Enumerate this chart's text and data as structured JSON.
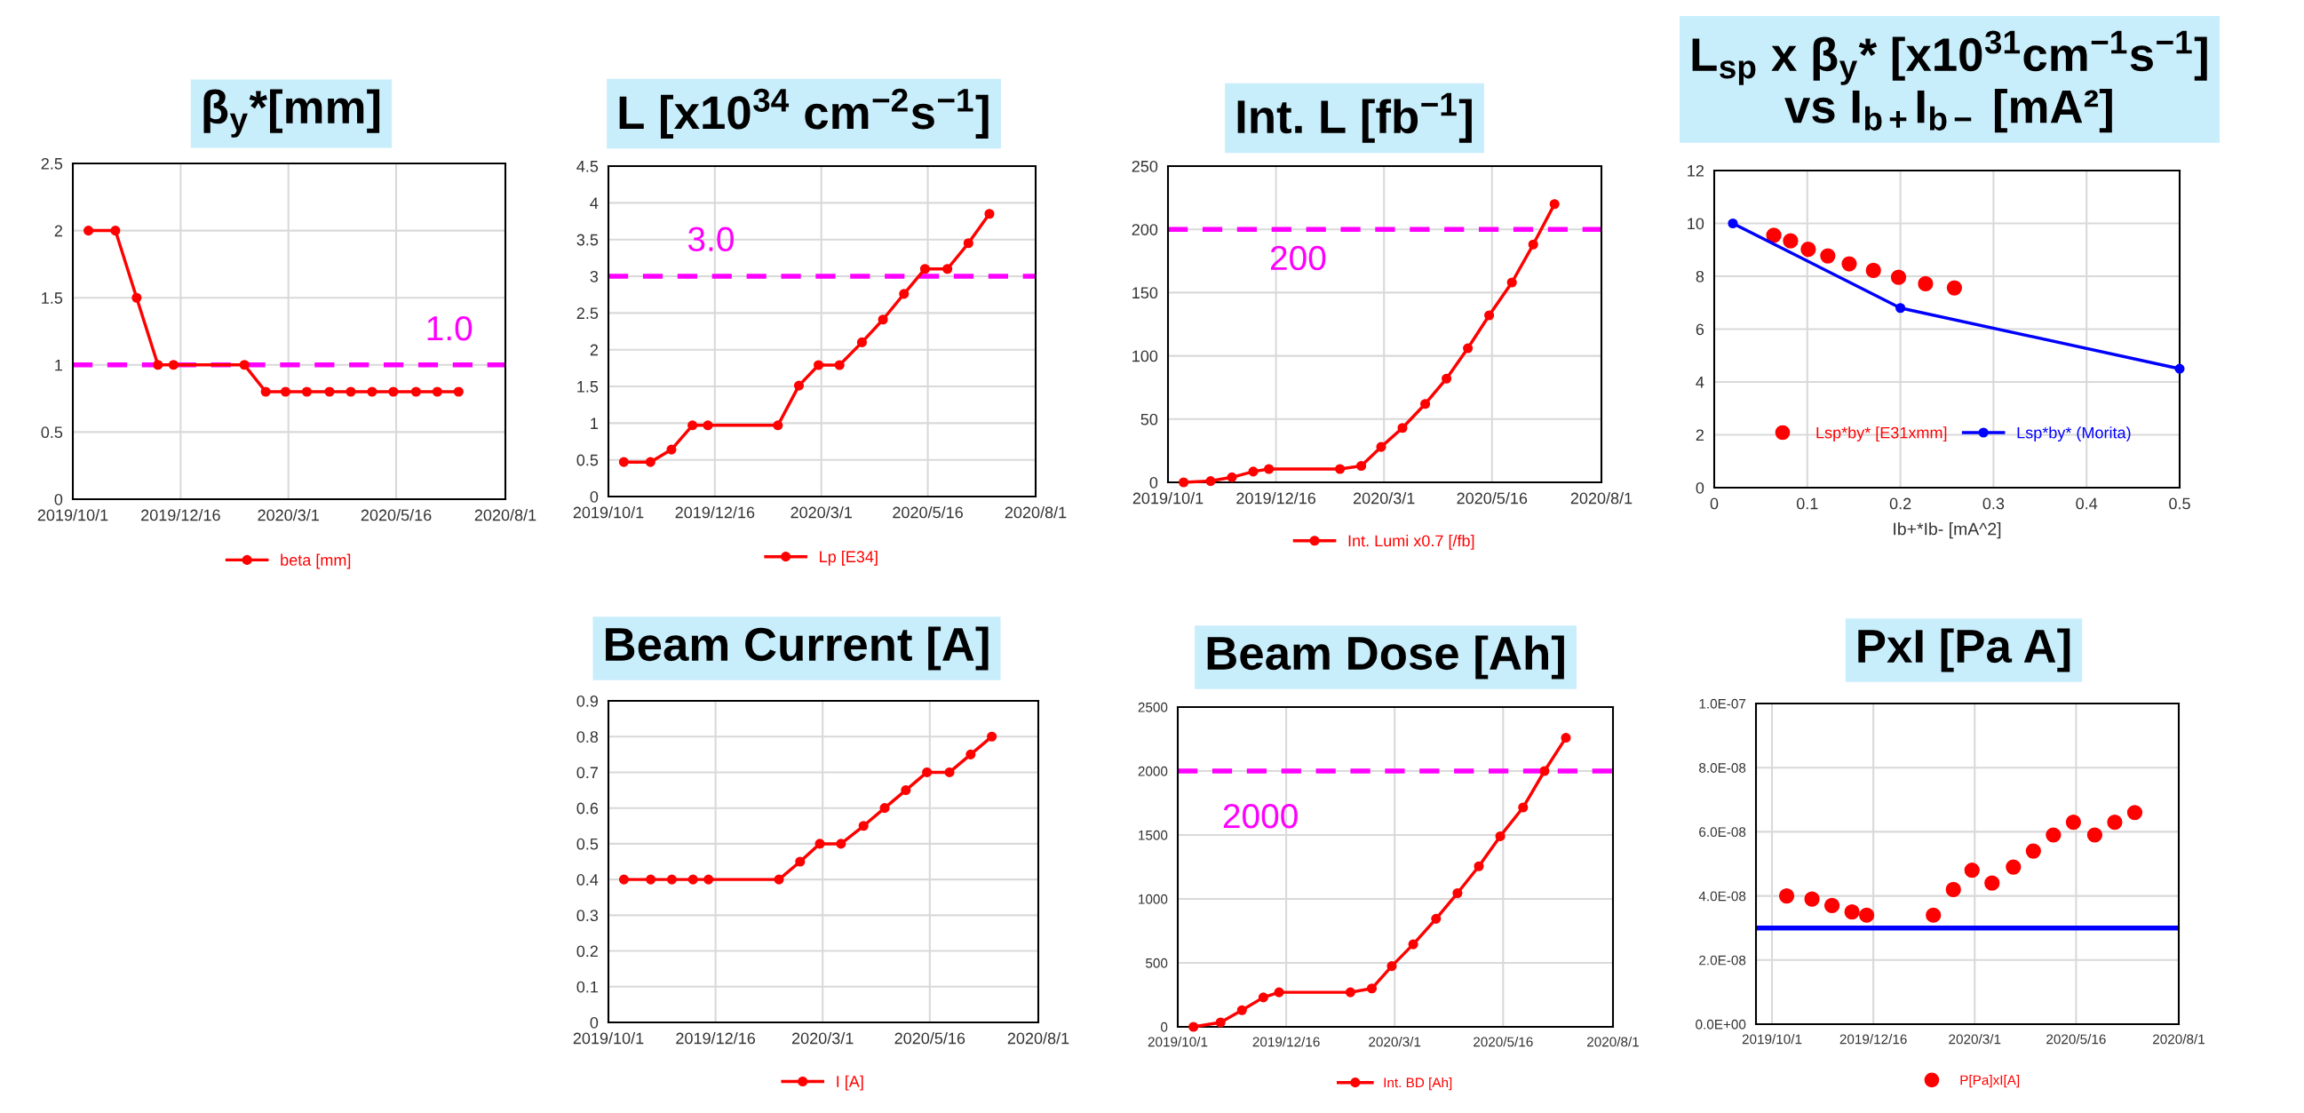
{
  "chart_data": [
    {
      "type": "line",
      "title": "β$_{y}$*[mm]",
      "x": [
        "2019-10-12",
        "2019-10-31",
        "2019-11-15",
        "2019-11-30",
        "2019-12-11",
        "2020-01-30",
        "2020-02-14",
        "2020-02-28",
        "2020-03-14",
        "2020-03-30",
        "2020-04-14",
        "2020-04-29",
        "2020-05-14",
        "2020-05-30",
        "2020-06-14",
        "2020-06-29"
      ],
      "series": [
        {
          "name": "beta [mm]",
          "color": "#ff0000",
          "values": [
            2,
            2,
            1.5,
            1,
            1,
            1,
            0.8,
            0.8,
            0.8,
            0.8,
            0.8,
            0.8,
            0.8,
            0.8,
            0.8,
            0.8
          ]
        }
      ],
      "xlim": [
        "2019-10-01",
        "2020-08-01"
      ],
      "xticks": [
        {
          "value": "2019-10-01",
          "label": "2019/10/1"
        },
        {
          "value": "2019-12-16",
          "label": "2019/12/16"
        },
        {
          "value": "2020-03-01",
          "label": "2020/3/1"
        },
        {
          "value": "2020-05-16",
          "label": "2020/5/16"
        },
        {
          "value": "2020-08-01",
          "label": "2020/8/1"
        }
      ],
      "ylim": [
        0,
        2.5
      ],
      "yticks": [
        0,
        0.5,
        1,
        1.5,
        2,
        2.5
      ],
      "ref_lines": [
        {
          "axis": "y",
          "value": 1,
          "label": "1.0",
          "color": "#ff00ff",
          "line_style": "dashed"
        }
      ],
      "marker": "circle",
      "line_style": "solid",
      "grid": true,
      "legend": "bottom"
    },
    {
      "type": "line",
      "title": "L [x10$^{34}$ cm$^{−2}$s$^{−1}$]",
      "x": [
        "2019-10-12",
        "2019-10-31",
        "2019-11-15",
        "2019-11-30",
        "2019-12-11",
        "2020-01-30",
        "2020-02-14",
        "2020-02-28",
        "2020-03-14",
        "2020-03-30",
        "2020-04-14",
        "2020-04-29",
        "2020-05-14",
        "2020-05-30",
        "2020-06-14",
        "2020-06-29"
      ],
      "series": [
        {
          "name": "Lp [E34]",
          "color": "#ff0000",
          "values": [
            0.47,
            0.47,
            0.64,
            0.97,
            0.97,
            0.97,
            1.51,
            1.79,
            1.79,
            2.1,
            2.41,
            2.76,
            3.1,
            3.1,
            3.45,
            3.85
          ]
        }
      ],
      "xlim": [
        "2019-10-01",
        "2020-08-01"
      ],
      "xticks": [
        {
          "value": "2019-10-01",
          "label": "2019/10/1"
        },
        {
          "value": "2019-12-16",
          "label": "2019/12/16"
        },
        {
          "value": "2020-03-01",
          "label": "2020/3/1"
        },
        {
          "value": "2020-05-16",
          "label": "2020/5/16"
        },
        {
          "value": "2020-08-01",
          "label": "2020/8/1"
        }
      ],
      "ylim": [
        0,
        4.5
      ],
      "yticks": [
        0,
        0.5,
        1,
        1.5,
        2,
        2.5,
        3,
        3.5,
        4,
        4.5
      ],
      "ref_lines": [
        {
          "axis": "y",
          "value": 3,
          "label": "3.0",
          "color": "#ff00ff",
          "line_style": "dashed"
        }
      ],
      "marker": "circle",
      "line_style": "solid",
      "grid": true,
      "legend": "bottom"
    },
    {
      "type": "line",
      "title": "Int. L [fb$^{−1}$]",
      "x": [
        "2019-10-12",
        "2019-10-31",
        "2019-11-15",
        "2019-11-30",
        "2019-12-11",
        "2020-01-30",
        "2020-02-14",
        "2020-02-28",
        "2020-03-14",
        "2020-03-30",
        "2020-04-14",
        "2020-04-29",
        "2020-05-14",
        "2020-05-30",
        "2020-06-14",
        "2020-06-29"
      ],
      "series": [
        {
          "name": "Int. Lumi x0.7 [/fb]",
          "color": "#ff0000",
          "values": [
            0,
            1,
            4,
            8.5,
            10.5,
            10.5,
            13,
            28,
            43,
            62,
            82,
            106,
            132,
            158,
            188,
            220
          ]
        }
      ],
      "xlim": [
        "2019-10-01",
        "2020-08-01"
      ],
      "xticks": [
        {
          "value": "2019-10-01",
          "label": "2019/10/1"
        },
        {
          "value": "2019-12-16",
          "label": "2019/12/16"
        },
        {
          "value": "2020-03-01",
          "label": "2020/3/1"
        },
        {
          "value": "2020-05-16",
          "label": "2020/5/16"
        },
        {
          "value": "2020-08-01",
          "label": "2020/8/1"
        }
      ],
      "ylim": [
        0,
        250
      ],
      "yticks": [
        0,
        50,
        100,
        150,
        200,
        250
      ],
      "ref_lines": [
        {
          "axis": "y",
          "value": 200,
          "label": "200",
          "color": "#ff00ff",
          "line_style": "dashed"
        }
      ],
      "marker": "circle",
      "line_style": "solid",
      "grid": true,
      "legend": "bottom"
    },
    {
      "type": "scatter",
      "title": "L$_{sp}$ x β$_{y}$* [x10$^{31}$cm$^{−1}$s$^{−1}$]\nvs I$_{b+}$I$_{b−}$ [mA²]",
      "xlabel": "Ib+*Ib- [mA^2]",
      "series": [
        {
          "name": "Lsp*by* [E31xmm]",
          "color": "#ff0000",
          "x": [
            0.064,
            0.082,
            0.101,
            0.122,
            0.145,
            0.171,
            0.198,
            0.227,
            0.258
          ],
          "values": [
            9.55,
            9.34,
            9.02,
            8.77,
            8.47,
            8.22,
            7.96,
            7.72,
            7.56
          ]
        },
        {
          "name": "Lsp*by* (Morita)",
          "type": "line",
          "color": "#0000ff",
          "x": [
            0.02,
            0.2,
            0.5
          ],
          "values": [
            10,
            6.8,
            4.5
          ]
        }
      ],
      "xlim": [
        0,
        0.5
      ],
      "xticks": [
        0,
        0.1,
        0.2,
        0.3,
        0.4,
        0.5
      ],
      "ylim": [
        0,
        12
      ],
      "yticks": [
        0,
        2,
        4,
        6,
        8,
        10,
        12
      ],
      "marker": "circle",
      "line_style": "solid",
      "grid": true,
      "legend": "bottom"
    },
    {
      "type": "line",
      "title": "Beam Current [A]",
      "x": [
        "2019-10-12",
        "2019-10-31",
        "2019-11-15",
        "2019-11-30",
        "2019-12-11",
        "2020-01-30",
        "2020-02-14",
        "2020-02-28",
        "2020-03-14",
        "2020-03-30",
        "2020-04-14",
        "2020-04-29",
        "2020-05-14",
        "2020-05-30",
        "2020-06-14",
        "2020-06-29"
      ],
      "series": [
        {
          "name": "I [A]",
          "color": "#ff0000",
          "values": [
            0.4,
            0.4,
            0.4,
            0.4,
            0.4,
            0.4,
            0.45,
            0.5,
            0.5,
            0.55,
            0.6,
            0.65,
            0.7,
            0.7,
            0.75,
            0.8
          ]
        }
      ],
      "xlim": [
        "2019-10-01",
        "2020-08-01"
      ],
      "xticks": [
        {
          "value": "2019-10-01",
          "label": "2019/10/1"
        },
        {
          "value": "2019-12-16",
          "label": "2019/12/16"
        },
        {
          "value": "2020-03-01",
          "label": "2020/3/1"
        },
        {
          "value": "2020-05-16",
          "label": "2020/5/16"
        },
        {
          "value": "2020-08-01",
          "label": "2020/8/1"
        }
      ],
      "ylim": [
        0,
        0.9
      ],
      "yticks": [
        0,
        0.1,
        0.2,
        0.3,
        0.4,
        0.5,
        0.6,
        0.7,
        0.8,
        0.9
      ],
      "marker": "circle",
      "line_style": "solid",
      "grid": true,
      "legend": "bottom"
    },
    {
      "type": "line",
      "title": "Beam Dose [Ah]",
      "x": [
        "2019-10-12",
        "2019-10-31",
        "2019-11-15",
        "2019-11-30",
        "2019-12-11",
        "2020-01-30",
        "2020-02-14",
        "2020-02-28",
        "2020-03-14",
        "2020-03-30",
        "2020-04-14",
        "2020-04-29",
        "2020-05-14",
        "2020-05-30",
        "2020-06-14",
        "2020-06-29"
      ],
      "series": [
        {
          "name": "Int. BD [Ah]",
          "color": "#ff0000",
          "values": [
            0,
            35,
            130,
            230,
            270,
            270,
            300,
            475,
            645,
            845,
            1045,
            1255,
            1490,
            1715,
            2000,
            2260
          ]
        }
      ],
      "xlim": [
        "2019-10-01",
        "2020-08-01"
      ],
      "xticks": [
        {
          "value": "2019-10-01",
          "label": "2019/10/1"
        },
        {
          "value": "2019-12-16",
          "label": "2019/12/16"
        },
        {
          "value": "2020-03-01",
          "label": "2020/3/1"
        },
        {
          "value": "2020-05-16",
          "label": "2020/5/16"
        },
        {
          "value": "2020-08-01",
          "label": "2020/8/1"
        }
      ],
      "ylim": [
        0,
        2500
      ],
      "yticks": [
        0,
        500,
        1000,
        1500,
        2000,
        2500
      ],
      "ref_lines": [
        {
          "axis": "y",
          "value": 2000,
          "label": "2000",
          "color": "#ff00ff",
          "line_style": "dashed"
        }
      ],
      "marker": "circle",
      "line_style": "solid",
      "grid": true,
      "legend": "bottom"
    },
    {
      "type": "scatter",
      "title": "PxI [Pa A]",
      "x": [
        "2019-10-12",
        "2019-10-31",
        "2019-11-15",
        "2019-11-30",
        "2019-12-11",
        "2020-01-30",
        "2020-02-14",
        "2020-02-28",
        "2020-03-14",
        "2020-03-30",
        "2020-04-14",
        "2020-04-29",
        "2020-05-14",
        "2020-05-30",
        "2020-06-14",
        "2020-06-29"
      ],
      "series": [
        {
          "name": "P[Pa]xI[A]",
          "color": "#ff0000",
          "values": [
            4e-08,
            3.9e-08,
            3.7e-08,
            3.5e-08,
            3.4e-08,
            3.4e-08,
            4.2e-08,
            4.8e-08,
            4.4e-08,
            4.9e-08,
            5.4e-08,
            5.9e-08,
            6.3e-08,
            5.9e-08,
            6.3e-08,
            6.6e-08
          ]
        }
      ],
      "xlim": [
        "2019-09-19",
        "2020-08-01"
      ],
      "xticks": [
        {
          "value": "2019-10-01",
          "label": "2019/10/1"
        },
        {
          "value": "2019-12-16",
          "label": "2019/12/16"
        },
        {
          "value": "2020-03-01",
          "label": "2020/3/1"
        },
        {
          "value": "2020-05-16",
          "label": "2020/5/16"
        },
        {
          "value": "2020-08-01",
          "label": "2020/8/1"
        }
      ],
      "ylim": [
        0,
        1e-07
      ],
      "yticks": [
        {
          "value": 0,
          "label": "0.0E+00"
        },
        {
          "value": 2e-08,
          "label": "2.0E-08"
        },
        {
          "value": 4e-08,
          "label": "4.0E-08"
        },
        {
          "value": 6e-08,
          "label": "6.0E-08"
        },
        {
          "value": 8e-08,
          "label": "8.0E-08"
        },
        {
          "value": 1e-07,
          "label": "1.0E-07"
        }
      ],
      "ref_lines": [
        {
          "axis": "y",
          "value": 3e-08,
          "color": "#0000ff",
          "line_style": "solid"
        }
      ],
      "marker": "circle",
      "grid": true,
      "legend": "bottom"
    }
  ]
}
